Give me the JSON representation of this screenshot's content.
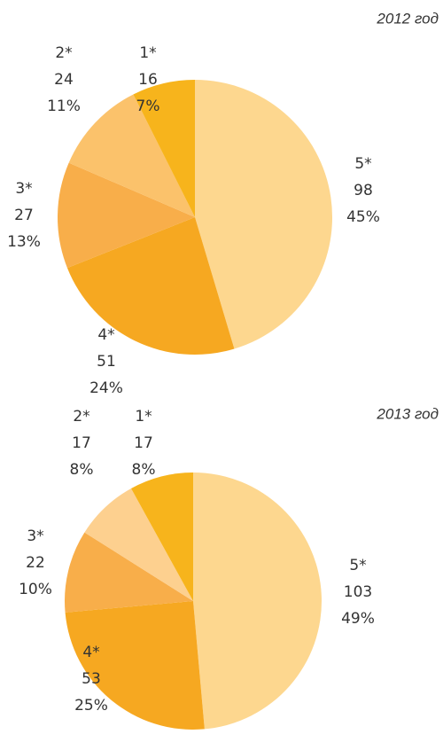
{
  "chart_data": [
    {
      "type": "pie",
      "title": "2012 год",
      "categories": [
        "5*",
        "4*",
        "3*",
        "2*",
        "1*"
      ],
      "values": [
        98,
        51,
        27,
        24,
        16
      ],
      "percent_labels": [
        "45%",
        "24%",
        "13%",
        "11%",
        "7%"
      ],
      "colors": [
        "#fdd78f",
        "#f6a821",
        "#f8ae4a",
        "#fbc26b",
        "#f7b41c"
      ]
    },
    {
      "type": "pie",
      "title": "2013 год",
      "categories": [
        "5*",
        "4*",
        "3*",
        "2*",
        "1*"
      ],
      "values": [
        103,
        53,
        22,
        17,
        17
      ],
      "percent_labels": [
        "49%",
        "25%",
        "10%",
        "8%",
        "8%"
      ],
      "colors": [
        "#fdd78f",
        "#f6a821",
        "#f8ae4a",
        "#fdd08f",
        "#f7b41c"
      ]
    }
  ]
}
